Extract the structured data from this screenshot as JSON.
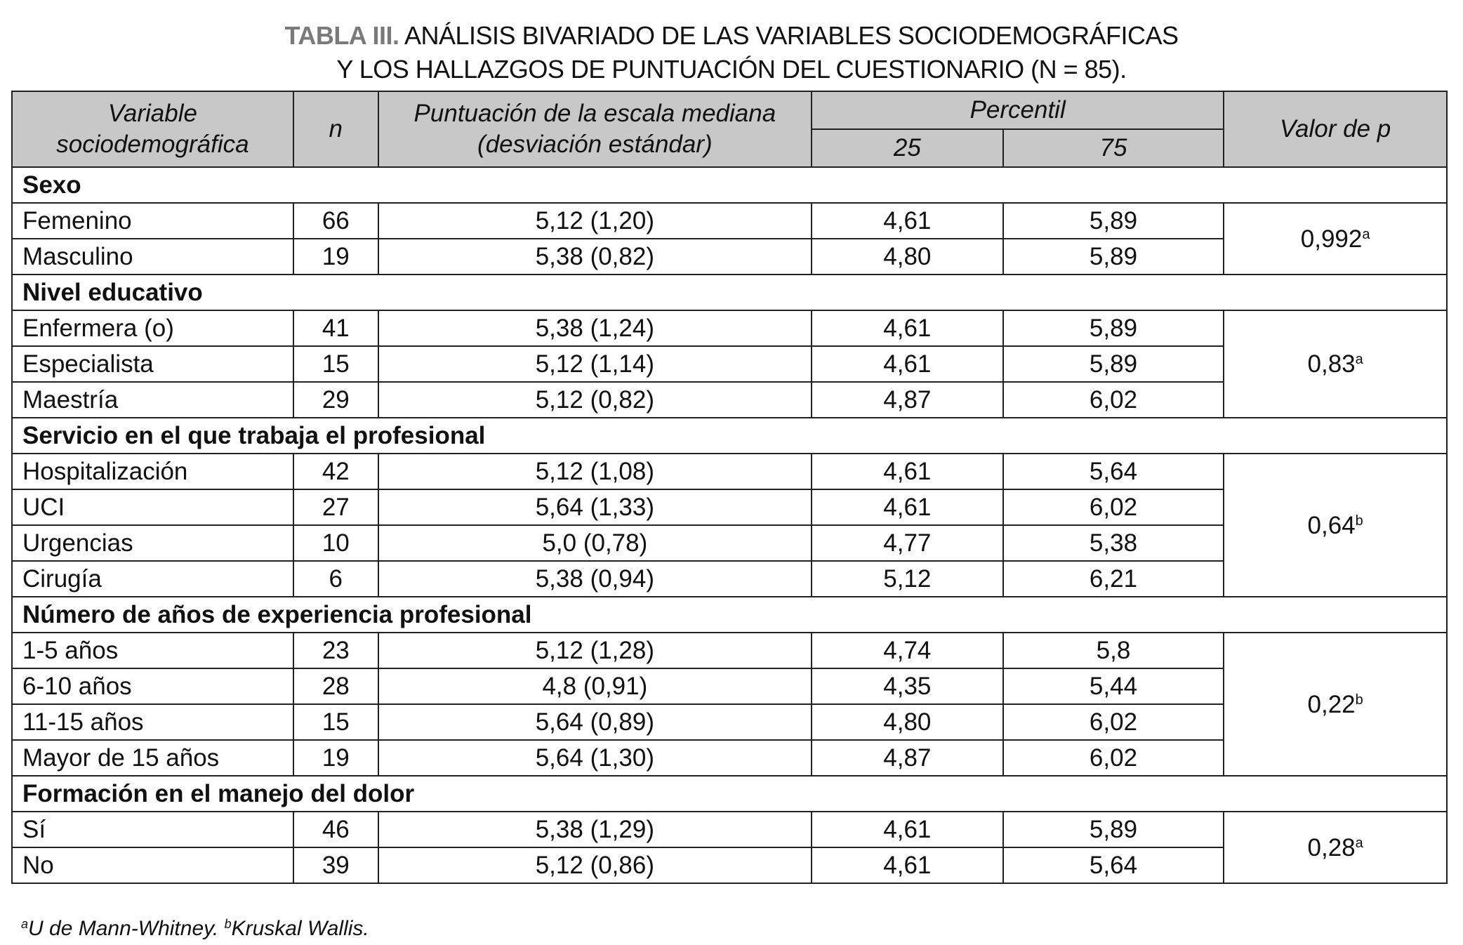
{
  "title": {
    "label": "TABLA III.",
    "line1": "ANÁLISIS BIVARIADO DE LAS VARIABLES SOCIODEMOGRÁFICAS",
    "line2": "Y LOS HALLAZGOS DE PUNTUACIÓN DEL CUESTIONARIO (N = 85)."
  },
  "headers": {
    "variable": "Variable sociodemográfica",
    "n": "n",
    "score": "Puntuación de la escala mediana (desviación estándar)",
    "percentil": "Percentil",
    "p25": "25",
    "p75": "75",
    "pvalue": "Valor de p"
  },
  "sections": [
    {
      "title": "Sexo",
      "p": "0,992",
      "sup": "a",
      "rows": [
        [
          "Femenino",
          "66",
          "5,12 (1,20)",
          "4,61",
          "5,89"
        ],
        [
          "Masculino",
          "19",
          "5,38 (0,82)",
          "4,80",
          "5,89"
        ]
      ]
    },
    {
      "title": "Nivel educativo",
      "p": "0,83",
      "sup": "a",
      "rows": [
        [
          "Enfermera (o)",
          "41",
          "5,38 (1,24)",
          "4,61",
          "5,89"
        ],
        [
          "Especialista",
          "15",
          "5,12 (1,14)",
          "4,61",
          "5,89"
        ],
        [
          "Maestría",
          "29",
          "5,12 (0,82)",
          "4,87",
          "6,02"
        ]
      ]
    },
    {
      "title": "Servicio en el que trabaja el profesional",
      "p": "0,64",
      "sup": "b",
      "rows": [
        [
          "Hospitalización",
          "42",
          "5,12 (1,08)",
          "4,61",
          "5,64"
        ],
        [
          "UCI",
          "27",
          "5,64 (1,33)",
          "4,61",
          "6,02"
        ],
        [
          "Urgencias",
          "10",
          "5,0 (0,78)",
          "4,77",
          "5,38"
        ],
        [
          "Cirugía",
          "6",
          "5,38 (0,94)",
          "5,12",
          "6,21"
        ]
      ]
    },
    {
      "title": "Número de años de experiencia profesional",
      "p": "0,22",
      "sup": "b",
      "rows": [
        [
          "1-5 años",
          "23",
          "5,12 (1,28)",
          "4,74",
          "5,8"
        ],
        [
          "6-10 años",
          "28",
          "4,8 (0,91)",
          "4,35",
          "5,44"
        ],
        [
          "11-15 años",
          "15",
          "5,64 (0,89)",
          "4,80",
          "6,02"
        ],
        [
          "Mayor de 15 años",
          "19",
          "5,64 (1,30)",
          "4,87",
          "6,02"
        ]
      ]
    },
    {
      "title": "Formación en el manejo del dolor",
      "p": "0,28",
      "sup": "a",
      "rows": [
        [
          "Sí",
          "46",
          "5,38 (1,29)",
          "4,61",
          "5,89"
        ],
        [
          "No",
          "39",
          "5,12 (0,86)",
          "4,61",
          "5,64"
        ]
      ]
    }
  ],
  "footnote": {
    "a_sup": "a",
    "a_text": "U de Mann-Whitney.",
    "b_sup": "b",
    "b_text": "Kruskal Wallis."
  },
  "colors": {
    "header_bg": "#c8c8c8",
    "title_label": "#7a7a7a"
  }
}
